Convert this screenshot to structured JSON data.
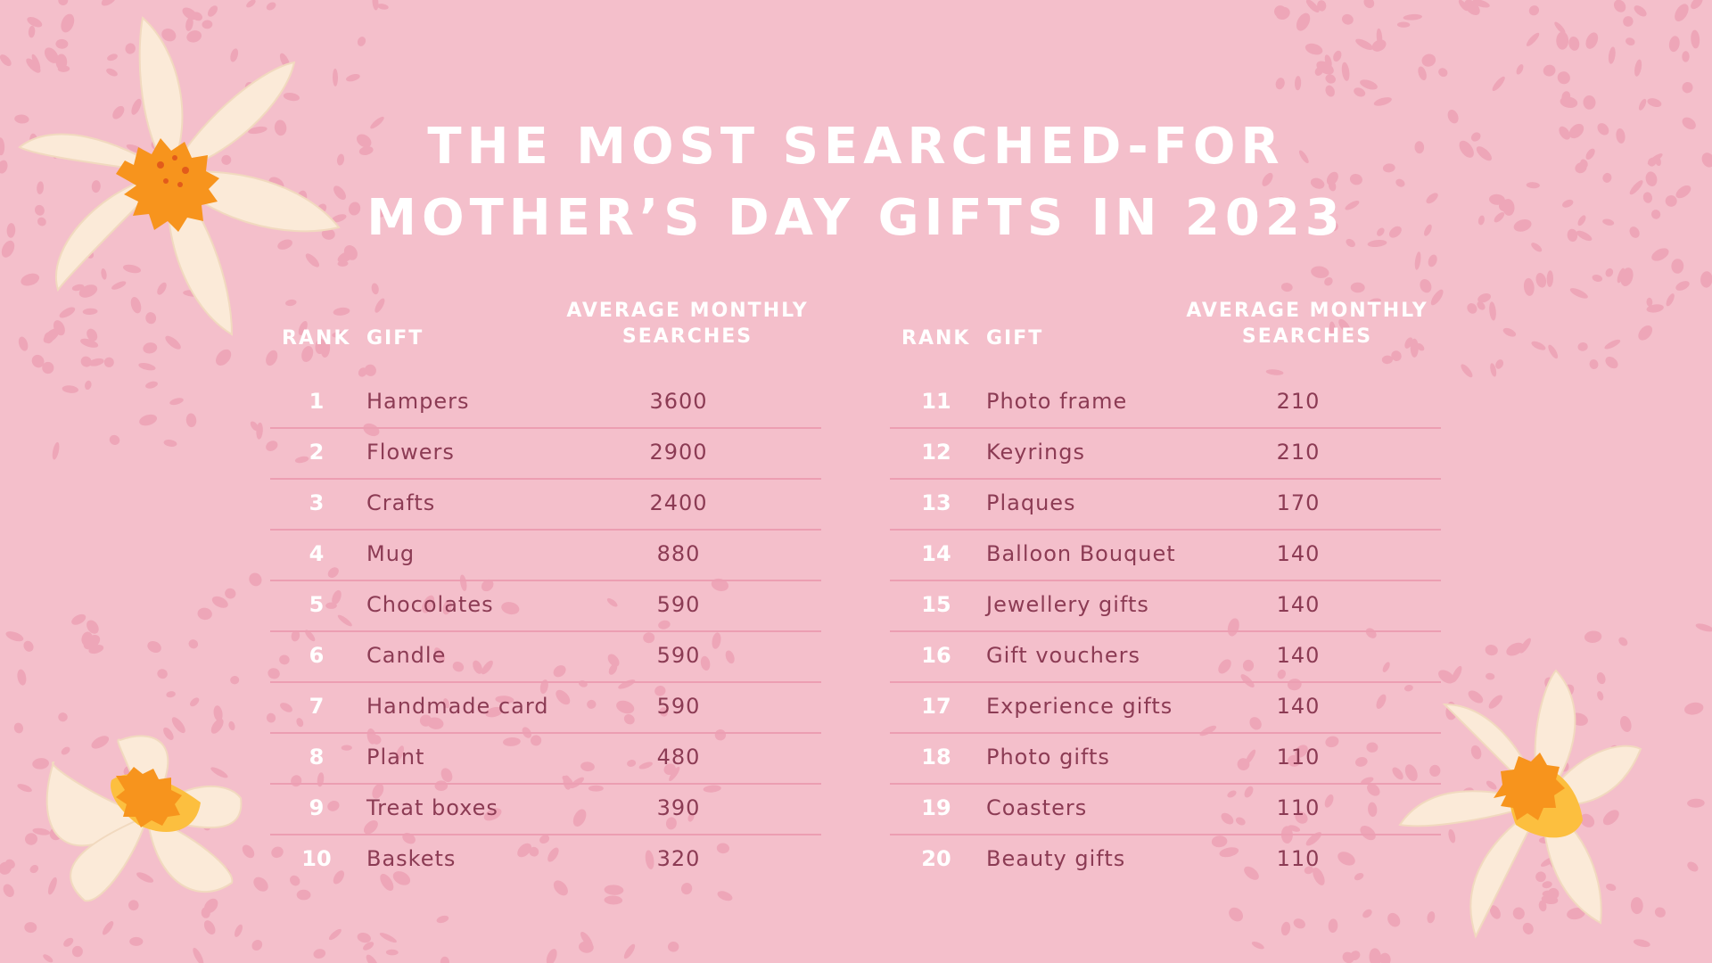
{
  "title": {
    "line1": "THE MOST SEARCHED-FOR",
    "line2": "MOTHER’S DAY GIFTS IN 2023"
  },
  "headers": {
    "rank": "RANK",
    "gift": "GIFT",
    "avg_line1": "AVERAGE MONTHLY",
    "avg_line2": "SEARCHES"
  },
  "left_rows": [
    {
      "rank": "1",
      "gift": "Hampers",
      "searches": "3600"
    },
    {
      "rank": "2",
      "gift": "Flowers",
      "searches": "2900"
    },
    {
      "rank": "3",
      "gift": "Crafts",
      "searches": "2400"
    },
    {
      "rank": "4",
      "gift": "Mug",
      "searches": "880"
    },
    {
      "rank": "5",
      "gift": "Chocolates",
      "searches": "590"
    },
    {
      "rank": "6",
      "gift": "Candle",
      "searches": "590"
    },
    {
      "rank": "7",
      "gift": "Handmade card",
      "searches": "590"
    },
    {
      "rank": "8",
      "gift": "Plant",
      "searches": "480"
    },
    {
      "rank": "9",
      "gift": "Treat boxes",
      "searches": "390"
    },
    {
      "rank": "10",
      "gift": "Baskets",
      "searches": "320"
    }
  ],
  "right_rows": [
    {
      "rank": "11",
      "gift": "Photo frame",
      "searches": "210"
    },
    {
      "rank": "12",
      "gift": "Keyrings",
      "searches": "210"
    },
    {
      "rank": "13",
      "gift": "Plaques",
      "searches": "170"
    },
    {
      "rank": "14",
      "gift": "Balloon Bouquet",
      "searches": "140"
    },
    {
      "rank": "15",
      "gift": "Jewellery gifts",
      "searches": "140"
    },
    {
      "rank": "16",
      "gift": "Gift vouchers",
      "searches": "140"
    },
    {
      "rank": "17",
      "gift": "Experience gifts",
      "searches": "140"
    },
    {
      "rank": "18",
      "gift": "Photo gifts",
      "searches": "110"
    },
    {
      "rank": "19",
      "gift": "Coasters",
      "searches": "110"
    },
    {
      "rank": "20",
      "gift": "Beauty gifts",
      "searches": "110"
    }
  ],
  "colors": {
    "background": "#f4bfcb",
    "speckle": "#ec9eb2",
    "text_value": "#8c3b54",
    "petal": "#fbead8",
    "flower_center": "#f7941d",
    "flower_center_light": "#fcbf3f"
  }
}
